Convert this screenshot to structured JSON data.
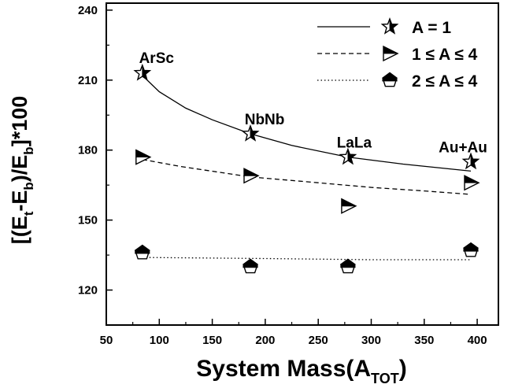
{
  "chart_data": {
    "type": "scatter",
    "title": "",
    "xlabel": {
      "main": "System Mass(A",
      "sub": "TOT",
      "close": ")"
    },
    "ylabel": {
      "p1": "[(E",
      "s1": "t",
      "p2": "-E",
      "s2": "b",
      "p3": ")/E",
      "s3": "b",
      "p4": "]*100"
    },
    "xlim": [
      50,
      420
    ],
    "ylim": [
      105,
      243
    ],
    "xticks": [
      50,
      100,
      150,
      200,
      250,
      300,
      350,
      400
    ],
    "yticks": [
      120,
      150,
      180,
      210,
      240
    ],
    "grid": false,
    "legend_position": "top-right",
    "annotations": [
      {
        "text": "ArSc",
        "x": 84,
        "y": 213
      },
      {
        "text": "NbNb",
        "x": 186,
        "y": 187
      },
      {
        "text": "LaLa",
        "x": 278,
        "y": 177
      },
      {
        "text": "Au+Au",
        "x": 394,
        "y": 175
      }
    ],
    "series": [
      {
        "name": "A = 1",
        "marker": "star",
        "line": "solid",
        "x": [
          84,
          186,
          278,
          394
        ],
        "y": [
          213,
          187,
          177,
          175
        ],
        "fit": [
          [
            84,
            212
          ],
          [
            100,
            205
          ],
          [
            125,
            198
          ],
          [
            150,
            193
          ],
          [
            186,
            187
          ],
          [
            225,
            182
          ],
          [
            278,
            177
          ],
          [
            330,
            174
          ],
          [
            394,
            171
          ]
        ]
      },
      {
        "name": "1 ≤ A ≤ 4",
        "marker": "half-triangle",
        "line": "dashed",
        "x": [
          84,
          186,
          278,
          394
        ],
        "y": [
          177,
          169,
          156,
          166
        ],
        "fit": [
          [
            84,
            176
          ],
          [
            120,
            173
          ],
          [
            186,
            168.5
          ],
          [
            250,
            166
          ],
          [
            300,
            164
          ],
          [
            350,
            162.5
          ],
          [
            394,
            161
          ]
        ]
      },
      {
        "name": "2 ≤ A ≤ 4",
        "marker": "half-pentagon",
        "line": "dotted",
        "x": [
          84,
          186,
          278,
          394
        ],
        "y": [
          136,
          130,
          130,
          137
        ],
        "fit": [
          [
            84,
            134
          ],
          [
            200,
            133.5
          ],
          [
            300,
            133
          ],
          [
            394,
            133
          ]
        ]
      }
    ]
  }
}
